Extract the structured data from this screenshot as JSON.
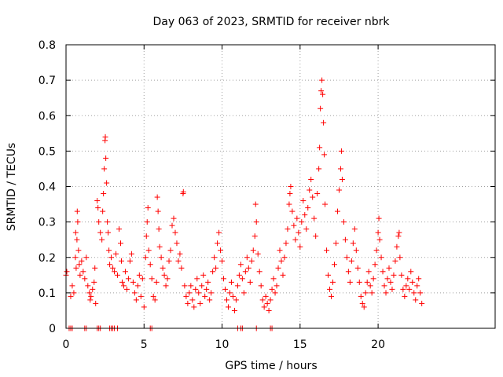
{
  "chart_data": {
    "type": "scatter",
    "title": "Day 063 of 2023, SRMTID for receiver nbrk",
    "xlabel": "GPS time / hours",
    "ylabel": "SRMTID / TECUs",
    "xlim": [
      0,
      27.5
    ],
    "ylim": [
      0,
      0.8
    ],
    "x_ticks": [
      0,
      5,
      10,
      15,
      20
    ],
    "y_ticks": [
      0,
      0.1,
      0.2,
      0.3,
      0.4,
      0.5,
      0.6,
      0.7,
      0.8
    ],
    "x_tick_labels": [
      "0",
      "5",
      "10",
      "15",
      "20"
    ],
    "y_tick_labels": [
      "0",
      "0.1",
      "0.2",
      "0.3",
      "0.4",
      "0.5",
      "0.6",
      "0.7",
      "0.8"
    ],
    "grid": true,
    "marker": "+",
    "color": "#ff0000",
    "series": [
      {
        "name": "SRMTID",
        "points": [
          [
            0.0,
            0.15
          ],
          [
            0.05,
            0.16
          ],
          [
            0.3,
            0.09
          ],
          [
            0.4,
            0.12
          ],
          [
            0.5,
            0.1
          ],
          [
            0.6,
            0.2
          ],
          [
            0.62,
            0.27
          ],
          [
            0.65,
            0.17
          ],
          [
            0.7,
            0.25
          ],
          [
            0.72,
            0.33
          ],
          [
            0.75,
            0.3
          ],
          [
            0.8,
            0.22
          ],
          [
            0.85,
            0.18
          ],
          [
            0.9,
            0.15
          ],
          [
            1.0,
            0.19
          ],
          [
            1.1,
            0.16
          ],
          [
            1.2,
            0.14
          ],
          [
            1.3,
            0.2
          ],
          [
            1.4,
            0.12
          ],
          [
            1.5,
            0.1
          ],
          [
            1.55,
            0.08
          ],
          [
            1.6,
            0.09
          ],
          [
            1.7,
            0.11
          ],
          [
            1.8,
            0.13
          ],
          [
            1.85,
            0.17
          ],
          [
            1.9,
            0.07
          ],
          [
            2.0,
            0.36
          ],
          [
            2.05,
            0.34
          ],
          [
            2.1,
            0.3
          ],
          [
            2.2,
            0.27
          ],
          [
            2.3,
            0.25
          ],
          [
            2.35,
            0.33
          ],
          [
            2.4,
            0.38
          ],
          [
            2.45,
            0.45
          ],
          [
            2.5,
            0.53
          ],
          [
            2.52,
            0.54
          ],
          [
            2.55,
            0.48
          ],
          [
            2.6,
            0.41
          ],
          [
            2.65,
            0.3
          ],
          [
            2.7,
            0.27
          ],
          [
            2.75,
            0.22
          ],
          [
            2.8,
            0.18
          ],
          [
            2.9,
            0.2
          ],
          [
            3.0,
            0.17
          ],
          [
            3.1,
            0.16
          ],
          [
            3.2,
            0.21
          ],
          [
            3.3,
            0.15
          ],
          [
            3.4,
            0.28
          ],
          [
            3.5,
            0.24
          ],
          [
            3.55,
            0.19
          ],
          [
            3.6,
            0.13
          ],
          [
            3.7,
            0.12
          ],
          [
            3.8,
            0.16
          ],
          [
            3.9,
            0.11
          ],
          [
            4.0,
            0.14
          ],
          [
            4.1,
            0.19
          ],
          [
            4.2,
            0.21
          ],
          [
            4.3,
            0.13
          ],
          [
            4.4,
            0.1
          ],
          [
            4.5,
            0.08
          ],
          [
            4.6,
            0.12
          ],
          [
            4.7,
            0.15
          ],
          [
            4.8,
            0.09
          ],
          [
            4.9,
            0.14
          ],
          [
            5.0,
            0.06
          ],
          [
            5.1,
            0.2
          ],
          [
            5.15,
            0.26
          ],
          [
            5.2,
            0.3
          ],
          [
            5.25,
            0.34
          ],
          [
            5.3,
            0.22
          ],
          [
            5.4,
            0.18
          ],
          [
            5.5,
            0.14
          ],
          [
            5.6,
            0.09
          ],
          [
            5.7,
            0.08
          ],
          [
            5.8,
            0.13
          ],
          [
            5.85,
            0.37
          ],
          [
            5.9,
            0.33
          ],
          [
            5.95,
            0.28
          ],
          [
            6.0,
            0.23
          ],
          [
            6.1,
            0.2
          ],
          [
            6.2,
            0.17
          ],
          [
            6.3,
            0.15
          ],
          [
            6.4,
            0.12
          ],
          [
            6.5,
            0.14
          ],
          [
            6.6,
            0.19
          ],
          [
            6.7,
            0.22
          ],
          [
            6.8,
            0.29
          ],
          [
            6.9,
            0.31
          ],
          [
            7.0,
            0.27
          ],
          [
            7.1,
            0.24
          ],
          [
            7.2,
            0.19
          ],
          [
            7.3,
            0.21
          ],
          [
            7.4,
            0.17
          ],
          [
            7.5,
            0.38
          ],
          [
            7.52,
            0.385
          ],
          [
            7.6,
            0.12
          ],
          [
            7.7,
            0.09
          ],
          [
            7.8,
            0.07
          ],
          [
            7.9,
            0.1
          ],
          [
            8.0,
            0.12
          ],
          [
            8.1,
            0.08
          ],
          [
            8.2,
            0.06
          ],
          [
            8.3,
            0.11
          ],
          [
            8.4,
            0.14
          ],
          [
            8.5,
            0.1
          ],
          [
            8.6,
            0.07
          ],
          [
            8.7,
            0.12
          ],
          [
            8.8,
            0.15
          ],
          [
            8.9,
            0.09
          ],
          [
            9.0,
            0.11
          ],
          [
            9.1,
            0.13
          ],
          [
            9.2,
            0.08
          ],
          [
            9.3,
            0.1
          ],
          [
            9.4,
            0.16
          ],
          [
            9.5,
            0.2
          ],
          [
            9.6,
            0.17
          ],
          [
            9.7,
            0.24
          ],
          [
            9.8,
            0.27
          ],
          [
            9.9,
            0.22
          ],
          [
            10.0,
            0.19
          ],
          [
            10.1,
            0.14
          ],
          [
            10.2,
            0.11
          ],
          [
            10.3,
            0.08
          ],
          [
            10.4,
            0.06
          ],
          [
            10.5,
            0.1
          ],
          [
            10.6,
            0.13
          ],
          [
            10.7,
            0.09
          ],
          [
            10.8,
            0.05
          ],
          [
            10.9,
            0.08
          ],
          [
            11.0,
            0.12
          ],
          [
            11.1,
            0.15
          ],
          [
            11.2,
            0.18
          ],
          [
            11.3,
            0.14
          ],
          [
            11.4,
            0.1
          ],
          [
            11.5,
            0.16
          ],
          [
            11.6,
            0.2
          ],
          [
            11.7,
            0.17
          ],
          [
            11.8,
            0.13
          ],
          [
            11.9,
            0.19
          ],
          [
            12.0,
            0.22
          ],
          [
            12.1,
            0.26
          ],
          [
            12.15,
            0.35
          ],
          [
            12.2,
            0.3
          ],
          [
            12.3,
            0.21
          ],
          [
            12.4,
            0.16
          ],
          [
            12.5,
            0.12
          ],
          [
            12.6,
            0.08
          ],
          [
            12.7,
            0.06
          ],
          [
            12.8,
            0.09
          ],
          [
            12.9,
            0.07
          ],
          [
            13.0,
            0.05
          ],
          [
            13.1,
            0.08
          ],
          [
            13.2,
            0.11
          ],
          [
            13.3,
            0.14
          ],
          [
            13.4,
            0.1
          ],
          [
            13.5,
            0.12
          ],
          [
            13.6,
            0.17
          ],
          [
            13.7,
            0.22
          ],
          [
            13.8,
            0.19
          ],
          [
            13.9,
            0.15
          ],
          [
            14.0,
            0.2
          ],
          [
            14.1,
            0.24
          ],
          [
            14.2,
            0.28
          ],
          [
            14.3,
            0.35
          ],
          [
            14.35,
            0.38
          ],
          [
            14.4,
            0.4
          ],
          [
            14.5,
            0.33
          ],
          [
            14.6,
            0.29
          ],
          [
            14.7,
            0.25
          ],
          [
            14.8,
            0.31
          ],
          [
            14.9,
            0.27
          ],
          [
            15.0,
            0.23
          ],
          [
            15.1,
            0.3
          ],
          [
            15.2,
            0.36
          ],
          [
            15.3,
            0.32
          ],
          [
            15.4,
            0.28
          ],
          [
            15.5,
            0.34
          ],
          [
            15.6,
            0.39
          ],
          [
            15.7,
            0.42
          ],
          [
            15.8,
            0.37
          ],
          [
            15.9,
            0.31
          ],
          [
            16.0,
            0.26
          ],
          [
            16.1,
            0.38
          ],
          [
            16.2,
            0.45
          ],
          [
            16.25,
            0.51
          ],
          [
            16.3,
            0.62
          ],
          [
            16.35,
            0.67
          ],
          [
            16.4,
            0.7
          ],
          [
            16.45,
            0.66
          ],
          [
            16.5,
            0.58
          ],
          [
            16.55,
            0.49
          ],
          [
            16.6,
            0.35
          ],
          [
            16.7,
            0.22
          ],
          [
            16.8,
            0.15
          ],
          [
            16.9,
            0.11
          ],
          [
            17.0,
            0.09
          ],
          [
            17.1,
            0.13
          ],
          [
            17.2,
            0.18
          ],
          [
            17.3,
            0.24
          ],
          [
            17.4,
            0.33
          ],
          [
            17.5,
            0.39
          ],
          [
            17.6,
            0.45
          ],
          [
            17.65,
            0.5
          ],
          [
            17.7,
            0.42
          ],
          [
            17.8,
            0.3
          ],
          [
            17.9,
            0.25
          ],
          [
            18.0,
            0.2
          ],
          [
            18.1,
            0.16
          ],
          [
            18.2,
            0.13
          ],
          [
            18.3,
            0.19
          ],
          [
            18.4,
            0.24
          ],
          [
            18.5,
            0.28
          ],
          [
            18.6,
            0.22
          ],
          [
            18.7,
            0.17
          ],
          [
            18.8,
            0.13
          ],
          [
            18.9,
            0.09
          ],
          [
            19.0,
            0.07
          ],
          [
            19.1,
            0.06
          ],
          [
            19.2,
            0.1
          ],
          [
            19.3,
            0.13
          ],
          [
            19.4,
            0.16
          ],
          [
            19.5,
            0.12
          ],
          [
            19.6,
            0.1
          ],
          [
            19.7,
            0.14
          ],
          [
            19.8,
            0.18
          ],
          [
            19.9,
            0.22
          ],
          [
            20.0,
            0.27
          ],
          [
            20.05,
            0.31
          ],
          [
            20.1,
            0.25
          ],
          [
            20.2,
            0.2
          ],
          [
            20.3,
            0.16
          ],
          [
            20.4,
            0.12
          ],
          [
            20.5,
            0.1
          ],
          [
            20.6,
            0.14
          ],
          [
            20.7,
            0.17
          ],
          [
            20.8,
            0.13
          ],
          [
            20.9,
            0.11
          ],
          [
            21.0,
            0.15
          ],
          [
            21.1,
            0.19
          ],
          [
            21.2,
            0.23
          ],
          [
            21.3,
            0.26
          ],
          [
            21.35,
            0.27
          ],
          [
            21.4,
            0.2
          ],
          [
            21.5,
            0.15
          ],
          [
            21.6,
            0.11
          ],
          [
            21.7,
            0.09
          ],
          [
            21.8,
            0.12
          ],
          [
            21.9,
            0.14
          ],
          [
            22.0,
            0.11
          ],
          [
            22.1,
            0.16
          ],
          [
            22.2,
            0.13
          ],
          [
            22.3,
            0.1
          ],
          [
            22.4,
            0.08
          ],
          [
            22.5,
            0.12
          ],
          [
            22.6,
            0.14
          ],
          [
            22.7,
            0.1
          ],
          [
            22.8,
            0.07
          ],
          [
            0.2,
            0.0
          ],
          [
            0.3,
            0.0
          ],
          [
            0.4,
            0.0
          ],
          [
            1.2,
            0.0
          ],
          [
            1.3,
            0.0
          ],
          [
            2.0,
            0.0
          ],
          [
            2.1,
            0.0
          ],
          [
            2.2,
            0.0
          ],
          [
            2.8,
            0.0
          ],
          [
            2.9,
            0.0
          ],
          [
            3.0,
            0.0
          ],
          [
            3.1,
            0.0
          ],
          [
            3.3,
            0.0
          ],
          [
            5.4,
            0.0
          ],
          [
            5.5,
            0.0
          ],
          [
            11.0,
            0.0
          ],
          [
            11.2,
            0.0
          ],
          [
            11.3,
            0.0
          ],
          [
            12.2,
            0.0
          ],
          [
            13.1,
            0.0
          ],
          [
            13.2,
            0.0
          ]
        ]
      }
    ]
  }
}
